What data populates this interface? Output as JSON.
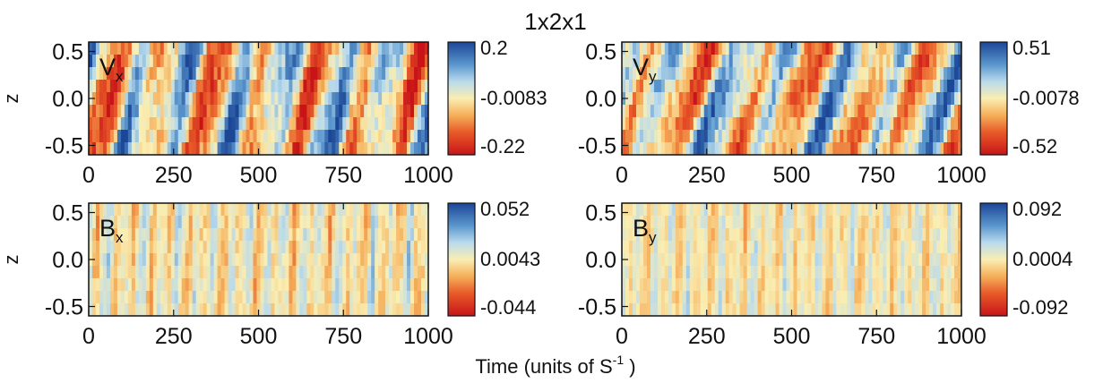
{
  "figure": {
    "title": "1x2x1",
    "xlabel_main": "Time (units of  S",
    "xlabel_sup": "-1",
    "xlabel_end": " )"
  },
  "chart_data": [
    {
      "type": "heatmap",
      "panel": "Vx",
      "label_main": "V",
      "label_sub": "x",
      "ylabel": "z",
      "xlim": [
        0,
        1000
      ],
      "ylim": [
        -0.6,
        0.6
      ],
      "xticks": [
        0,
        250,
        500,
        750,
        1000
      ],
      "xtick_labels": [
        "0",
        "250",
        "500",
        "750",
        "1000"
      ],
      "yticks": [
        0.5,
        0.0,
        -0.5
      ],
      "ytick_labels": [
        "0.5",
        "0.0",
        "-0.5"
      ],
      "colorbar": {
        "max": 0.2,
        "mid": -0.0083,
        "min": -0.22,
        "labels": [
          "0.2",
          "-0.0083",
          "-0.22"
        ]
      },
      "pattern": {
        "amplitude": 1.0,
        "bands": 42,
        "tilt": 0.9,
        "noise": 0.25,
        "seed": 11
      }
    },
    {
      "type": "heatmap",
      "panel": "Vy",
      "label_main": "V",
      "label_sub": "y",
      "ylabel": "",
      "xlim": [
        0,
        1000
      ],
      "ylim": [
        -0.6,
        0.6
      ],
      "xticks": [
        0,
        250,
        500,
        750,
        1000
      ],
      "xtick_labels": [
        "0",
        "250",
        "500",
        "750",
        "1000"
      ],
      "yticks": [
        0.5,
        0.0,
        -0.5
      ],
      "ytick_labels": [
        "0.5",
        "0.0",
        "-0.5"
      ],
      "colorbar": {
        "max": 0.51,
        "mid": -0.0078,
        "min": -0.52,
        "labels": [
          "0.51",
          "-0.0078",
          "-0.52"
        ]
      },
      "pattern": {
        "amplitude": 0.9,
        "bands": 38,
        "tilt": 1.4,
        "noise": 0.25,
        "seed": 29
      }
    },
    {
      "type": "heatmap",
      "panel": "Bx",
      "label_main": "B",
      "label_sub": "x",
      "ylabel": "z",
      "xlim": [
        0,
        1000
      ],
      "ylim": [
        -0.6,
        0.6
      ],
      "xticks": [
        0,
        250,
        500,
        750,
        1000
      ],
      "xtick_labels": [
        "0",
        "250",
        "500",
        "750",
        "1000"
      ],
      "yticks": [
        0.5,
        0.0,
        -0.5
      ],
      "ytick_labels": [
        "0.5",
        "0.0",
        "-0.5"
      ],
      "colorbar": {
        "max": 0.052,
        "mid": 0.0043,
        "min": -0.044,
        "labels": [
          "0.052",
          "0.0043",
          "-0.044"
        ]
      },
      "pattern": {
        "amplitude": 0.38,
        "bands": 120,
        "tilt": 0.4,
        "noise": 0.35,
        "seed": 47
      }
    },
    {
      "type": "heatmap",
      "panel": "By",
      "label_main": "B",
      "label_sub": "y",
      "ylabel": "",
      "xlim": [
        0,
        1000
      ],
      "ylim": [
        -0.6,
        0.6
      ],
      "xticks": [
        0,
        250,
        500,
        750,
        1000
      ],
      "xtick_labels": [
        "0",
        "250",
        "500",
        "750",
        "1000"
      ],
      "yticks": [
        0.5,
        0.0,
        -0.5
      ],
      "ytick_labels": [
        "0.5",
        "0.0",
        "-0.5"
      ],
      "colorbar": {
        "max": 0.092,
        "mid": 0.0004,
        "min": -0.092,
        "labels": [
          "0.092",
          "0.0004",
          "-0.092"
        ]
      },
      "pattern": {
        "amplitude": 0.3,
        "bands": 130,
        "tilt": 0.3,
        "noise": 0.35,
        "seed": 83
      }
    }
  ]
}
